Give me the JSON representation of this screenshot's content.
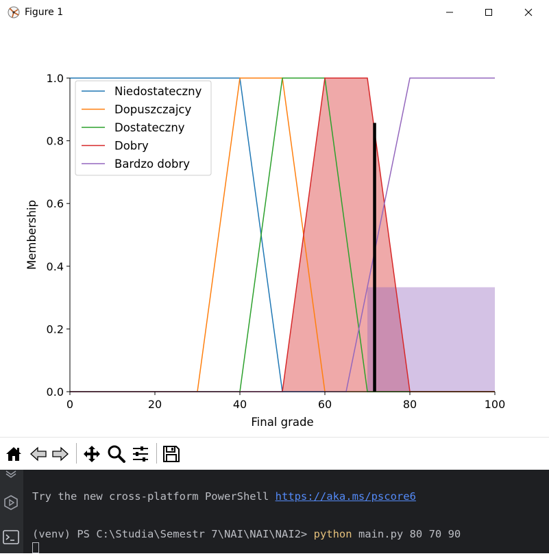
{
  "window": {
    "title": "Figure 1"
  },
  "chart_data": {
    "type": "line",
    "xlabel": "Final grade",
    "ylabel": "Membership",
    "xlim": [
      0,
      100
    ],
    "ylim": [
      0,
      1.0
    ],
    "xticks": [
      0,
      20,
      40,
      60,
      80,
      100
    ],
    "yticks": [
      0.0,
      0.2,
      0.4,
      0.6,
      0.8,
      1.0
    ],
    "xtick_labels": [
      "0",
      "20",
      "40",
      "60",
      "80",
      "100"
    ],
    "ytick_labels": [
      "0.0",
      "0.2",
      "0.4",
      "0.6",
      "0.8",
      "1.0"
    ],
    "legend_position": "top-left",
    "series": [
      {
        "name": "Niedostateczny",
        "color": "#1f77b4",
        "x": [
          0,
          40,
          50,
          100
        ],
        "y": [
          1,
          1,
          0,
          0
        ]
      },
      {
        "name": "Dopuszczajcy",
        "color": "#ff7f0e",
        "x": [
          0,
          30,
          40,
          50,
          60,
          100
        ],
        "y": [
          0,
          0,
          1,
          1,
          0,
          0
        ]
      },
      {
        "name": "Dostateczny",
        "color": "#2ca02c",
        "x": [
          0,
          40,
          50,
          60,
          70,
          100
        ],
        "y": [
          0,
          0,
          1,
          1,
          0,
          0
        ]
      },
      {
        "name": "Dobry",
        "color": "#d62728",
        "x": [
          0,
          50,
          60,
          70,
          80,
          100
        ],
        "y": [
          0,
          0,
          1,
          1,
          0,
          0
        ]
      },
      {
        "name": "Bardzo dobry",
        "color": "#9467bd",
        "x": [
          0,
          65,
          80,
          100
        ],
        "y": [
          0,
          0,
          1,
          1
        ]
      }
    ],
    "filled_regions": [
      {
        "series": "Dobry",
        "color": "#d62728",
        "opacity": 0.4,
        "x": [
          50,
          60,
          70,
          80
        ],
        "y": [
          0,
          1,
          1,
          0
        ]
      },
      {
        "series": "Bardzo dobry",
        "color": "#9467bd",
        "opacity": 0.4,
        "x": [
          70,
          71.7,
          100,
          100
        ],
        "y": [
          0.333,
          0.333,
          0.333,
          0
        ]
      }
    ],
    "result_line": {
      "x": 71.7,
      "y": 0.857,
      "color": "#000000"
    },
    "grid": false
  },
  "toolbar": {
    "buttons": [
      {
        "name": "home-icon"
      },
      {
        "name": "back-icon"
      },
      {
        "name": "forward-icon"
      },
      {
        "name": "pan-icon"
      },
      {
        "name": "zoom-icon"
      },
      {
        "name": "configure-subplots-icon"
      },
      {
        "name": "save-icon"
      }
    ]
  },
  "terminal": {
    "line1_text": "Try the new cross-platform PowerShell ",
    "line1_link": "https://aka.ms/pscore6",
    "prompt": "(venv) PS C:\\Studia\\Semestr 7\\NAI\\NAI\\NAI2> ",
    "command": "python",
    "args": " main.py 80 70 90"
  }
}
